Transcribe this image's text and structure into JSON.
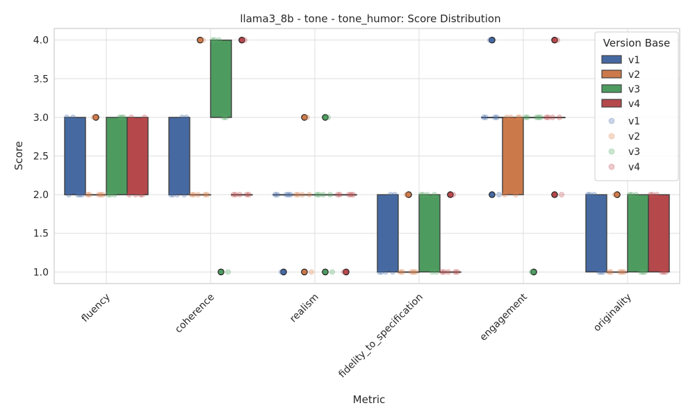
{
  "chart_data": {
    "type": "box",
    "title": "llama3_8b - tone - tone_humor: Score Distribution",
    "xlabel": "Metric",
    "ylabel": "Score",
    "ylim": [
      0.85,
      4.15
    ],
    "yticks": [
      "1.0",
      "1.5",
      "2.0",
      "2.5",
      "3.0",
      "3.5",
      "4.0"
    ],
    "ytick_values": [
      1.0,
      1.5,
      2.0,
      2.5,
      3.0,
      3.5,
      4.0
    ],
    "grid": true,
    "categories": [
      "fluency",
      "coherence",
      "realism",
      "fidelity_to_specification",
      "engagement",
      "originality"
    ],
    "legend": {
      "title": "Version Base",
      "position": "top-right",
      "box_entries": [
        "v1",
        "v2",
        "v3",
        "v4"
      ],
      "point_entries": [
        "v1",
        "v2",
        "v3",
        "v4"
      ]
    },
    "series": [
      {
        "name": "v1",
        "color": "#4c72b0",
        "boxes": [
          {
            "q1": 2,
            "median": 2,
            "q3": 3,
            "whislo": 2,
            "whishi": 3,
            "outliers": [],
            "points": [
              2,
              2,
              3,
              2,
              3,
              2
            ]
          },
          {
            "q1": 2,
            "median": 2,
            "q3": 3,
            "whislo": 2,
            "whishi": 3,
            "outliers": [],
            "points": [
              2,
              3,
              2,
              3,
              2,
              2
            ]
          },
          {
            "q1": 2,
            "median": 2,
            "q3": 2,
            "whislo": 2,
            "whishi": 2,
            "outliers": [
              1
            ],
            "points": [
              2,
              2,
              1,
              2,
              2,
              2
            ]
          },
          {
            "q1": 1,
            "median": 1,
            "q3": 2,
            "whislo": 1,
            "whishi": 2,
            "outliers": [],
            "points": [
              1,
              2,
              1,
              2,
              1,
              1
            ]
          },
          {
            "q1": 3,
            "median": 3,
            "q3": 3,
            "whislo": 3,
            "whishi": 3,
            "outliers": [
              4,
              2
            ],
            "points": [
              3,
              3,
              4,
              2,
              3,
              3
            ]
          },
          {
            "q1": 1,
            "median": 1,
            "q3": 2,
            "whislo": 1,
            "whishi": 2,
            "outliers": [],
            "points": [
              2,
              1,
              2,
              1,
              2,
              1
            ]
          }
        ]
      },
      {
        "name": "v2",
        "color": "#dd8452",
        "boxes": [
          {
            "q1": 2,
            "median": 2,
            "q3": 2,
            "whislo": 2,
            "whishi": 2,
            "outliers": [
              3
            ],
            "points": [
              2,
              2,
              3,
              2,
              2,
              2
            ]
          },
          {
            "q1": 2,
            "median": 2,
            "q3": 2,
            "whislo": 2,
            "whishi": 2,
            "outliers": [
              4
            ],
            "points": [
              2,
              4,
              2,
              2,
              2,
              2
            ]
          },
          {
            "q1": 2,
            "median": 2,
            "q3": 2,
            "whislo": 2,
            "whishi": 2,
            "outliers": [
              3,
              1
            ],
            "points": [
              2,
              3,
              2,
              1,
              2,
              2
            ]
          },
          {
            "q1": 1,
            "median": 1,
            "q3": 1,
            "whislo": 1,
            "whishi": 1,
            "outliers": [
              2
            ],
            "points": [
              1,
              1,
              2,
              1,
              1,
              1
            ]
          },
          {
            "q1": 2,
            "median": 3,
            "q3": 3,
            "whislo": 2,
            "whishi": 3,
            "outliers": [],
            "points": [
              3,
              2,
              3,
              3,
              2,
              3
            ]
          },
          {
            "q1": 1,
            "median": 1,
            "q3": 1,
            "whislo": 1,
            "whishi": 1,
            "outliers": [
              2
            ],
            "points": [
              1,
              1,
              2,
              1,
              1,
              1
            ]
          }
        ]
      },
      {
        "name": "v3",
        "color": "#55a868",
        "boxes": [
          {
            "q1": 2,
            "median": 2,
            "q3": 3,
            "whislo": 2,
            "whishi": 3,
            "outliers": [],
            "points": [
              2,
              3,
              2,
              3,
              2,
              3
            ]
          },
          {
            "q1": 3,
            "median": 3,
            "q3": 4,
            "whislo": 3,
            "whishi": 4,
            "outliers": [
              1
            ],
            "points": [
              4,
              3,
              4,
              1,
              4,
              3
            ]
          },
          {
            "q1": 2,
            "median": 2,
            "q3": 2,
            "whislo": 2,
            "whishi": 2,
            "outliers": [
              3,
              1
            ],
            "points": [
              2,
              3,
              2,
              1,
              2,
              2
            ]
          },
          {
            "q1": 1,
            "median": 1,
            "q3": 2,
            "whislo": 1,
            "whishi": 2,
            "outliers": [],
            "points": [
              2,
              1,
              2,
              1,
              2,
              2
            ]
          },
          {
            "q1": 3,
            "median": 3,
            "q3": 3,
            "whislo": 3,
            "whishi": 3,
            "outliers": [
              1
            ],
            "points": [
              3,
              3,
              1,
              3,
              3,
              3
            ]
          },
          {
            "q1": 1,
            "median": 1,
            "q3": 2,
            "whislo": 1,
            "whishi": 2,
            "outliers": [],
            "points": [
              2,
              1,
              2,
              1,
              2,
              1
            ]
          }
        ]
      },
      {
        "name": "v4",
        "color": "#c44e52",
        "boxes": [
          {
            "q1": 2,
            "median": 2,
            "q3": 3,
            "whislo": 2,
            "whishi": 3,
            "outliers": [],
            "points": [
              3,
              2,
              2,
              3,
              2,
              2
            ]
          },
          {
            "q1": 2,
            "median": 2,
            "q3": 2,
            "whislo": 2,
            "whishi": 2,
            "outliers": [
              4
            ],
            "points": [
              2,
              4,
              2,
              2,
              2,
              2
            ]
          },
          {
            "q1": 2,
            "median": 2,
            "q3": 2,
            "whislo": 2,
            "whishi": 2,
            "outliers": [
              1
            ],
            "points": [
              2,
              2,
              1,
              2,
              2,
              2
            ]
          },
          {
            "q1": 1,
            "median": 1,
            "q3": 1,
            "whislo": 1,
            "whishi": 1,
            "outliers": [
              2
            ],
            "points": [
              1,
              2,
              1,
              1,
              1,
              1
            ]
          },
          {
            "q1": 3,
            "median": 3,
            "q3": 3,
            "whislo": 3,
            "whishi": 3,
            "outliers": [
              4,
              2
            ],
            "points": [
              3,
              4,
              3,
              2,
              3,
              3
            ]
          },
          {
            "q1": 1,
            "median": 1,
            "q3": 2,
            "whislo": 1,
            "whishi": 2,
            "outliers": [],
            "points": [
              2,
              1,
              2,
              1,
              2,
              1
            ]
          }
        ]
      }
    ]
  }
}
